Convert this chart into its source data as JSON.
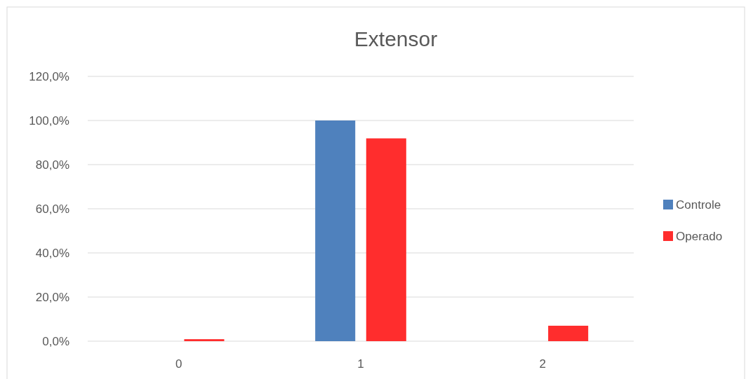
{
  "chart_data": {
    "type": "bar",
    "title": "Extensor",
    "categories": [
      "0",
      "1",
      "2"
    ],
    "series": [
      {
        "name": "Controle",
        "color": "#4f81bd",
        "values": [
          0,
          100,
          0
        ]
      },
      {
        "name": "Operado",
        "color": "#ff2d2d",
        "values": [
          0.9,
          91.9,
          7.0
        ]
      }
    ],
    "ylim": [
      0,
      120
    ],
    "yticks": [
      {
        "value": 0,
        "label": "0,0%"
      },
      {
        "value": 20,
        "label": "20,0%"
      },
      {
        "value": 40,
        "label": "40,0%"
      },
      {
        "value": 60,
        "label": "60,0%"
      },
      {
        "value": 80,
        "label": "80,0%"
      },
      {
        "value": 100,
        "label": "100,0%"
      },
      {
        "value": 120,
        "label": "120,0%"
      }
    ],
    "grid": "y",
    "legend": "right"
  }
}
